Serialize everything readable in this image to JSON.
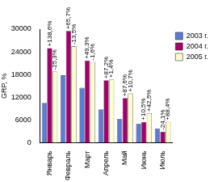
{
  "chart_data": {
    "type": "bar",
    "y_label": "GRP, %",
    "categories": [
      "Январь",
      "Февраль",
      "Март",
      "Апрель",
      "Май",
      "Июнь",
      "Июль"
    ],
    "series": [
      {
        "name": "2003 г.",
        "color": "#5b7bd5",
        "values": [
          10500,
          17800,
          14500,
          8800,
          6300,
          5000,
          3800
        ]
      },
      {
        "name": "2004 г.",
        "color": "#a3006b",
        "values": [
          25000,
          29500,
          21700,
          16500,
          11800,
          5500,
          2900
        ],
        "annotations": [
          "+138,6%",
          "+65,7%",
          "+49,3%",
          "+87,2%",
          "+87,6%",
          "+10,5%",
          "-24,1%"
        ]
      },
      {
        "name": "2005 г.",
        "color": "#ffffcc",
        "values": [
          18800,
          25500,
          21300,
          16700,
          13000,
          7800,
          5500
        ],
        "annotations": [
          "-25,3%",
          "-13,5%",
          "-1,6%",
          "+1,4%",
          "+10,7%",
          "+42,5%",
          "+88,4%"
        ]
      }
    ],
    "ylim": [
      0,
      30000
    ],
    "yticks": [
      0,
      6000,
      12000,
      18000,
      24000,
      30000
    ],
    "grid": false,
    "legend": "right"
  }
}
